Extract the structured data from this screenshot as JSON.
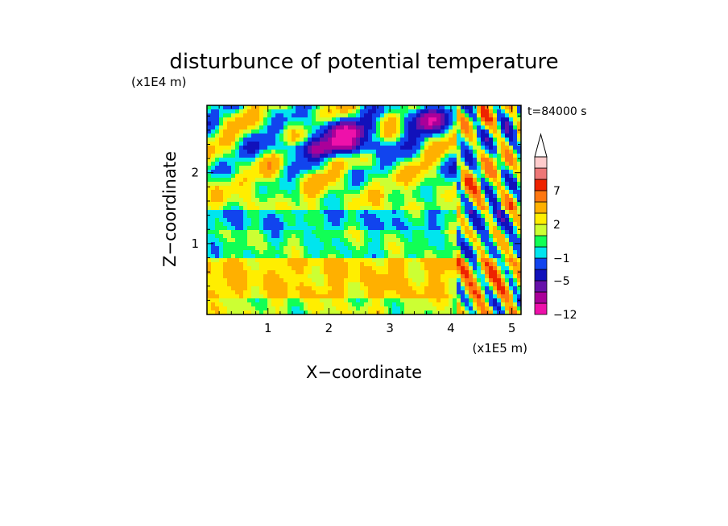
{
  "chart_data": {
    "type": "heatmap",
    "title": "disturbunce of potential temperature",
    "time_label": "t=84000 s",
    "xlabel": "X−coordinate",
    "ylabel": "Z−coordinate",
    "x_scale_label": "(x1E5 m)",
    "y_scale_label": "(x1E4 m)",
    "xlim": [
      0,
      5.15
    ],
    "ylim": [
      0,
      2.95
    ],
    "x_ticks": [
      1,
      2,
      3,
      4,
      5
    ],
    "y_ticks": [
      1,
      2
    ],
    "colorbar": {
      "levels": [
        -12,
        -9,
        -7,
        -5,
        -3,
        -1,
        0,
        1,
        2,
        3,
        5,
        7,
        9,
        11
      ],
      "colors": [
        "#ee11aa",
        "#aa0099",
        "#6611aa",
        "#1111bb",
        "#1144ee",
        "#00e5ee",
        "#11ff55",
        "#ccff33",
        "#ffee00",
        "#ffb000",
        "#ff7711",
        "#ee2200",
        "#ee7777",
        "#ffcccc"
      ],
      "tick_labels": [
        "−12",
        "−5",
        "−1",
        "2",
        "7"
      ],
      "tick_values": [
        -12,
        -5,
        -1,
        2,
        7
      ],
      "extend": "max"
    },
    "field_description_layers": [
      {
        "z_range": [
          0,
          0.2
        ],
        "typical_value": 1.5
      },
      {
        "z_range": [
          0.2,
          0.8
        ],
        "typical_value": 3
      },
      {
        "z_range": [
          0.8,
          1.2
        ],
        "typical_value": 0.5
      },
      {
        "z_range": [
          1.2,
          1.5
        ],
        "typical_value": -0.5
      },
      {
        "z_range": [
          1.5,
          2.0
        ],
        "typical_value": 1.5
      },
      {
        "z_range": [
          2.0,
          2.95
        ],
        "typical_value": 1
      }
    ]
  }
}
